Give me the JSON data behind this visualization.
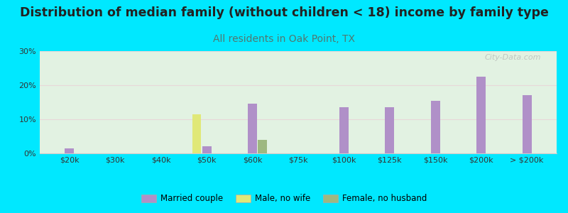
{
  "title": "Distribution of median family (without children < 18) income by family type",
  "subtitle": "All residents in Oak Point, TX",
  "categories": [
    "$20k",
    "$30k",
    "$40k",
    "$50k",
    "$60k",
    "$75k",
    "$100k",
    "$125k",
    "$150k",
    "$200k",
    "> $200k"
  ],
  "married_couple": [
    1.5,
    0,
    0,
    2.0,
    14.5,
    0,
    13.5,
    13.5,
    15.5,
    22.5,
    17.0
  ],
  "male_no_wife": [
    0,
    0,
    0,
    11.5,
    0,
    0,
    0,
    0,
    0,
    0,
    0
  ],
  "female_no_husb": [
    0,
    0,
    0,
    0,
    4.0,
    0,
    0,
    0,
    0,
    0,
    0
  ],
  "color_married": "#b090c8",
  "color_male": "#e0e878",
  "color_female": "#9eb880",
  "background_outer": "#00e8ff",
  "background_inner": "#d8f0d8",
  "ylim": [
    0,
    30
  ],
  "yticks": [
    0,
    10,
    20,
    30
  ],
  "watermark": "City-Data.com",
  "title_fontsize": 12.5,
  "subtitle_fontsize": 10,
  "subtitle_color": "#507870",
  "legend_labels": [
    "Married couple",
    "Male, no wife",
    "Female, no husband"
  ]
}
